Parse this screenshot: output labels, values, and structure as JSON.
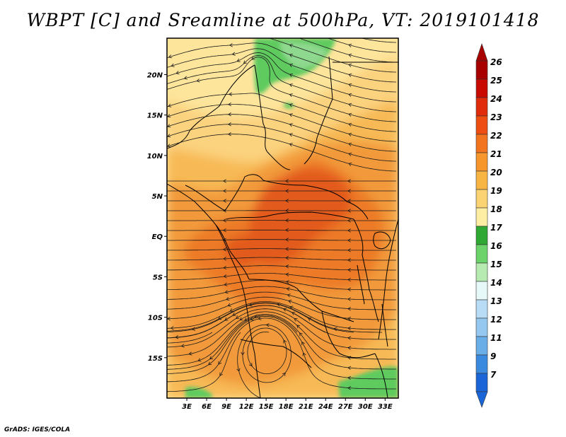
{
  "title": "WBPT [C] and Sreamline at 500hPa, VT: 2019101418",
  "credit": "GrADS: IGES/COLA",
  "map": {
    "variable": "Wet-bulb potential temperature",
    "units": "C",
    "level": "500hPa",
    "valid_time": "2019101418",
    "lon_range": [
      0,
      35
    ],
    "lat_range": [
      -20,
      24.5
    ],
    "lon_ticks": [
      {
        "value": 3,
        "label": "3E"
      },
      {
        "value": 6,
        "label": "6E"
      },
      {
        "value": 9,
        "label": "9E"
      },
      {
        "value": 12,
        "label": "12E"
      },
      {
        "value": 15,
        "label": "15E"
      },
      {
        "value": 18,
        "label": "18E"
      },
      {
        "value": 21,
        "label": "21E"
      },
      {
        "value": 24,
        "label": "24E"
      },
      {
        "value": 27,
        "label": "27E"
      },
      {
        "value": 30,
        "label": "30E"
      },
      {
        "value": 33,
        "label": "33E"
      }
    ],
    "lat_ticks": [
      {
        "value": 20,
        "label": "20N"
      },
      {
        "value": 15,
        "label": "15N"
      },
      {
        "value": 10,
        "label": "10N"
      },
      {
        "value": 5,
        "label": "5N"
      },
      {
        "value": 0,
        "label": "EQ"
      },
      {
        "value": -5,
        "label": "5S"
      },
      {
        "value": -10,
        "label": "10S"
      },
      {
        "value": -15,
        "label": "15S"
      }
    ],
    "colors": {
      "c18_19": "#fde59c",
      "c19_20": "#fbd27e",
      "c20_21": "#f7b955",
      "c21_22": "#f29a3a",
      "c22_23": "#ec7a26",
      "c23_24": "#e25a1b",
      "green_light": "#8fd88f",
      "green_mid": "#5fcb5f",
      "green_dark": "#3cb53c"
    }
  },
  "colorbar": {
    "labels": [
      "26",
      "25",
      "24",
      "23",
      "22",
      "21",
      "20",
      "19",
      "18",
      "17",
      "16",
      "15",
      "14",
      "13",
      "12",
      "11",
      "9",
      "7"
    ],
    "colors": [
      "#a80000",
      "#c80a00",
      "#e02c0a",
      "#ee4e12",
      "#f3741f",
      "#f6962c",
      "#f9b544",
      "#fbd373",
      "#fdeea4",
      "#2fa834",
      "#6cd26a",
      "#b6eab1",
      "#e6f8f8",
      "#b9dcf6",
      "#94c8f0",
      "#6aaee8",
      "#3a8be0",
      "#1a66d8"
    ]
  }
}
